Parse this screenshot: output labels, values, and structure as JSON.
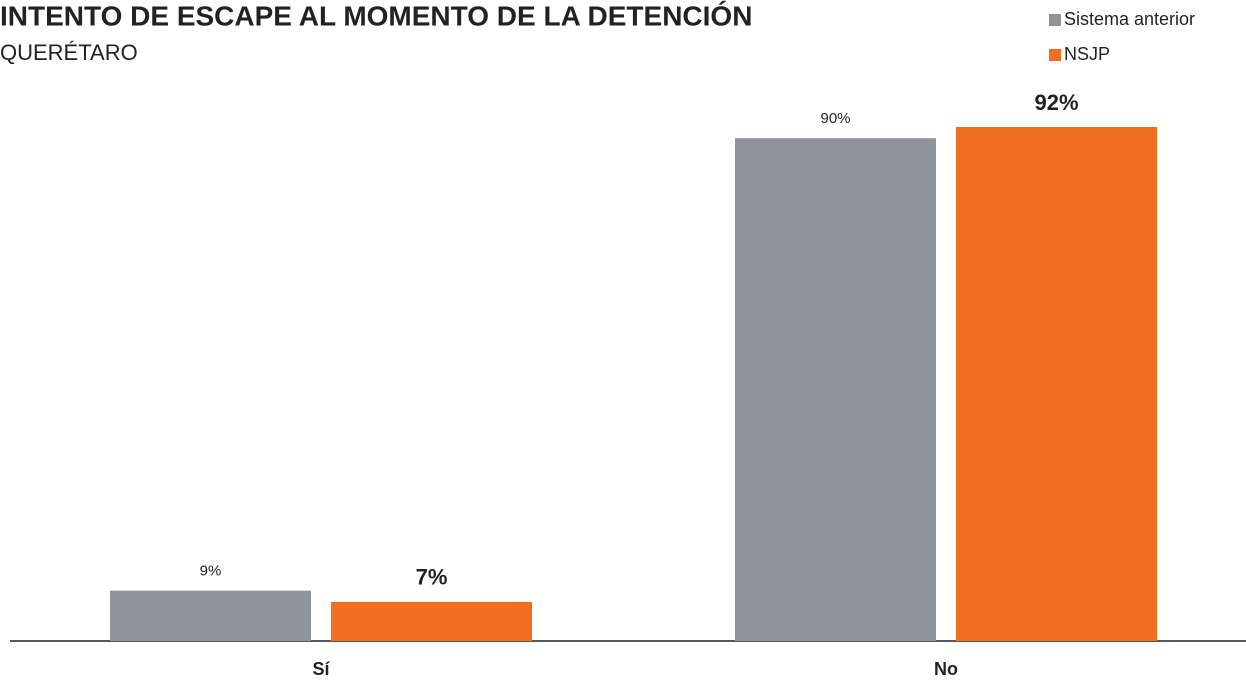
{
  "chart_data": {
    "type": "bar",
    "title": "INTENTO DE ESCAPE AL MOMENTO DE LA DETENCIÓN",
    "subtitle": "QUERÉTARO",
    "categories": [
      "Sí",
      "No"
    ],
    "series": [
      {
        "name": "Sistema anterior",
        "color": "#8f939d",
        "values": [
          9,
          90
        ],
        "value_labels": [
          "9%",
          "90%"
        ]
      },
      {
        "name": "NSJP",
        "color": "#f26f21",
        "values": [
          7,
          92
        ],
        "value_labels": [
          "7%",
          "92%"
        ]
      }
    ]
  }
}
